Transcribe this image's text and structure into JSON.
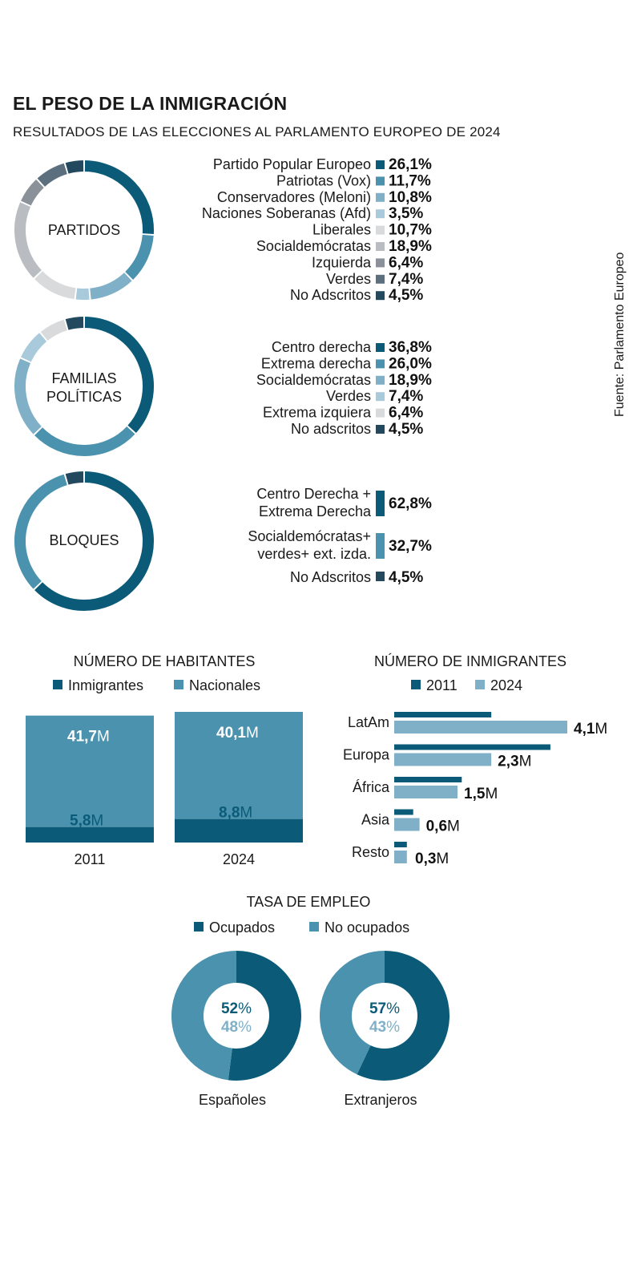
{
  "title": "EL PESO DE LA INMIGRACIÓN",
  "subtitle": "RESULTADOS DE LAS ELECCIONES AL PARLAMENTO EUROPEO DE 2024",
  "source": "Fuente: Parlamento Europeo",
  "colors": {
    "dark": "#0b5b78",
    "mid": "#4a92ad",
    "light": "#7fb0c8",
    "pale": "#a9cadb",
    "grey": "#cfd1d4",
    "greydark": "#8a9199",
    "slate": "#5c6f7e",
    "navy": "#23495e"
  },
  "chart_data": [
    {
      "type": "pie",
      "center_label": [
        "PARTIDOS"
      ],
      "categories": [
        "Partido Popular Europeo",
        "Patriotas (Vox)",
        "Conservadores (Meloni)",
        "Naciones Soberanas (Afd)",
        "Liberales",
        "Socialdemócratas",
        "Izquierda",
        "Verdes",
        "No Adscritos"
      ],
      "values": [
        26.1,
        11.7,
        10.8,
        3.5,
        10.7,
        18.9,
        6.4,
        7.4,
        4.5
      ],
      "value_labels": [
        "26,1%",
        "11,7%",
        "10,8%",
        "3,5%",
        "10,7%",
        "18,9%",
        "6,4%",
        "7,4%",
        "4,5%"
      ],
      "colors": [
        "#0b5b78",
        "#4a92ad",
        "#7fb0c8",
        "#a9cadb",
        "#d9dadc",
        "#b9bcc1",
        "#8a9199",
        "#5c6f7e",
        "#23495e"
      ]
    },
    {
      "type": "pie",
      "center_label": [
        "FAMILIAS",
        "POLÍTICAS"
      ],
      "categories": [
        "Centro derecha",
        "Extrema derecha",
        "Socialdemócratas",
        "Verdes",
        "Extrema izquiera",
        "No adscritos"
      ],
      "values": [
        36.8,
        26.0,
        18.9,
        7.4,
        6.4,
        4.5
      ],
      "value_labels": [
        "36,8%",
        "26,0%",
        "18,9%",
        "7,4%",
        "6,4%",
        "4,5%"
      ],
      "colors": [
        "#0b5b78",
        "#4a92ad",
        "#7fb0c8",
        "#a9cadb",
        "#d9dadc",
        "#23495e"
      ]
    },
    {
      "type": "pie",
      "center_label": [
        "BLOQUES"
      ],
      "categories": [
        [
          "Centro Derecha +",
          "Extrema Derecha"
        ],
        [
          "Socialdemócratas+",
          "verdes+ ext. izda."
        ],
        [
          "No Adscritos"
        ]
      ],
      "values": [
        62.8,
        32.7,
        4.5
      ],
      "value_labels": [
        "62,8%",
        "32,7%",
        "4,5%"
      ],
      "colors": [
        "#0b5b78",
        "#4a92ad",
        "#23495e"
      ]
    },
    {
      "type": "bar",
      "title": "NÚMERO DE HABITANTES",
      "legend": [
        "Inmigrantes",
        "Nacionales"
      ],
      "categories": [
        "2011",
        "2024"
      ],
      "series": [
        {
          "name": "Inmigrantes",
          "values": [
            5.8,
            8.8
          ],
          "labels": [
            "5,8",
            "8,8"
          ],
          "color": "#0b5b78"
        },
        {
          "name": "Nacionales",
          "values": [
            41.7,
            40.1
          ],
          "labels": [
            "41,7",
            "40,1"
          ],
          "color": "#4a92ad"
        }
      ],
      "unit": "M"
    },
    {
      "type": "bar",
      "title": "NÚMERO DE INMIGRANTES",
      "legend": [
        "2011",
        "2024"
      ],
      "categories": [
        "LatAm",
        "Europa",
        "África",
        "Asia",
        "Resto"
      ],
      "series": [
        {
          "name": "2011",
          "values": [
            2.3,
            3.7,
            1.6,
            0.45,
            0.3
          ],
          "color": "#0b5b78"
        },
        {
          "name": "2024",
          "values": [
            4.1,
            2.3,
            1.5,
            0.6,
            0.3
          ],
          "labels": [
            "4,1",
            "2,3",
            "1,5",
            "0,6",
            "0,3"
          ],
          "color": "#7fb0c8"
        }
      ],
      "unit": "M"
    },
    {
      "type": "pie",
      "title": "TASA DE EMPLEO",
      "legend": [
        "Ocupados",
        "No ocupados"
      ],
      "groups": [
        {
          "name": "Españoles",
          "values": [
            52,
            48
          ],
          "labels": [
            "52",
            "48"
          ]
        },
        {
          "name": "Extranjeros",
          "values": [
            57,
            43
          ],
          "labels": [
            "57",
            "43"
          ]
        }
      ],
      "unit": "%",
      "colors": [
        "#0b5b78",
        "#4a92ad"
      ]
    }
  ]
}
